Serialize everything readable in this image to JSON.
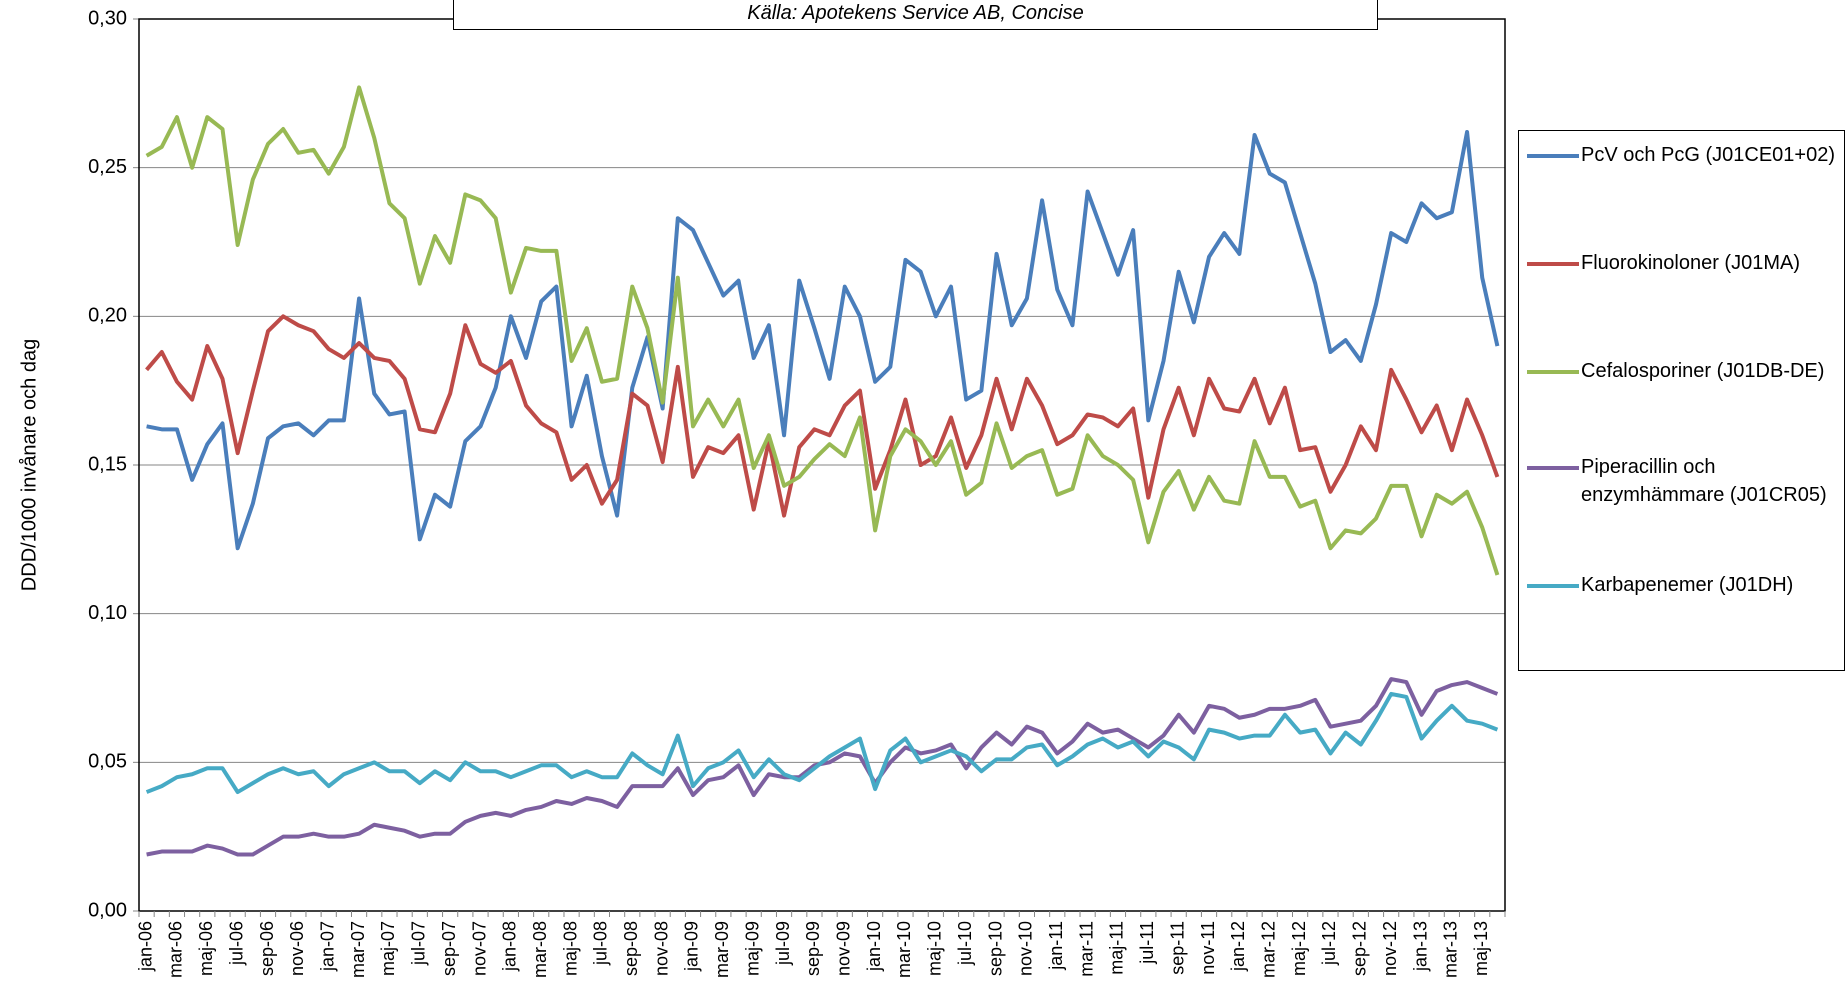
{
  "chart_data": {
    "type": "line",
    "annotation": "Källa: Apotekens Service AB, Concise",
    "ylabel": "DDD/1000 invånare och dag",
    "categories": [
      "jan-06",
      null,
      "mar-06",
      null,
      "maj-06",
      null,
      "jul-06",
      null,
      "sep-06",
      null,
      "nov-06",
      null,
      "jan-07",
      null,
      "mar-07",
      null,
      "maj-07",
      null,
      "jul-07",
      null,
      "sep-07",
      null,
      "nov-07",
      null,
      "jan-08",
      null,
      "mar-08",
      null,
      "maj-08",
      null,
      "jul-08",
      null,
      "sep-08",
      null,
      "nov-08",
      null,
      "jan-09",
      null,
      "mar-09",
      null,
      "maj-09",
      null,
      "jul-09",
      null,
      "sep-09",
      null,
      "nov-09",
      null,
      "jan-10",
      null,
      "mar-10",
      null,
      "maj-10",
      null,
      "jul-10",
      null,
      "sep-10",
      null,
      "nov-10",
      null,
      "jan-11",
      null,
      "mar-11",
      null,
      "maj-11",
      null,
      "jul-11",
      null,
      "sep-11",
      null,
      "nov-11",
      null,
      "jan-12",
      null,
      "mar-12",
      null,
      "maj-12",
      null,
      "jul-12",
      null,
      "sep-12",
      null,
      "nov-12",
      null,
      "jan-13",
      null,
      "mar-13",
      null,
      "maj-13",
      null
    ],
    "series": [
      {
        "name": "PcV och PcG (J01CE01+02)",
        "color": "#4a7ebb",
        "values": [
          0.163,
          0.162,
          0.162,
          0.145,
          0.157,
          0.164,
          0.122,
          0.137,
          0.159,
          0.163,
          0.164,
          0.16,
          0.165,
          0.165,
          0.206,
          0.174,
          0.167,
          0.168,
          0.125,
          0.14,
          0.136,
          0.158,
          0.163,
          0.176,
          0.2,
          0.186,
          0.205,
          0.21,
          0.163,
          0.18,
          0.153,
          0.133,
          0.176,
          0.193,
          0.169,
          0.233,
          0.229,
          0.218,
          0.207,
          0.212,
          0.186,
          0.197,
          0.16,
          0.212,
          0.196,
          0.179,
          0.21,
          0.2,
          0.178,
          0.183,
          0.219,
          0.215,
          0.2,
          0.21,
          0.172,
          0.175,
          0.221,
          0.197,
          0.206,
          0.239,
          0.209,
          0.197,
          0.242,
          0.228,
          0.214,
          0.229,
          0.165,
          0.185,
          0.215,
          0.198,
          0.22,
          0.228,
          0.221,
          0.261,
          0.248,
          0.245,
          0.228,
          0.211,
          0.188,
          0.192,
          0.185,
          0.204,
          0.228,
          0.225,
          0.238,
          0.233,
          0.235,
          0.262,
          0.213,
          0.19
        ]
      },
      {
        "name": "Fluorokinoloner (J01MA)",
        "color": "#be4b48",
        "values": [
          0.182,
          0.188,
          0.178,
          0.172,
          0.19,
          0.179,
          0.154,
          0.175,
          0.195,
          0.2,
          0.197,
          0.195,
          0.189,
          0.186,
          0.191,
          0.186,
          0.185,
          0.179,
          0.162,
          0.161,
          0.174,
          0.197,
          0.184,
          0.181,
          0.185,
          0.17,
          0.164,
          0.161,
          0.145,
          0.15,
          0.137,
          0.145,
          0.174,
          0.17,
          0.151,
          0.183,
          0.146,
          0.156,
          0.154,
          0.16,
          0.135,
          0.158,
          0.133,
          0.156,
          0.162,
          0.16,
          0.17,
          0.175,
          0.142,
          0.155,
          0.172,
          0.15,
          0.153,
          0.166,
          0.149,
          0.16,
          0.179,
          0.162,
          0.179,
          0.17,
          0.157,
          0.16,
          0.167,
          0.166,
          0.163,
          0.169,
          0.139,
          0.162,
          0.176,
          0.16,
          0.179,
          0.169,
          0.168,
          0.179,
          0.164,
          0.176,
          0.155,
          0.156,
          0.141,
          0.15,
          0.163,
          0.155,
          0.182,
          0.172,
          0.161,
          0.17,
          0.155,
          0.172,
          0.16,
          0.146
        ]
      },
      {
        "name": "Cefalosporiner (J01DB-DE)",
        "color": "#98b954",
        "values": [
          0.254,
          0.257,
          0.267,
          0.25,
          0.267,
          0.263,
          0.224,
          0.246,
          0.258,
          0.263,
          0.255,
          0.256,
          0.248,
          0.257,
          0.277,
          0.26,
          0.238,
          0.233,
          0.211,
          0.227,
          0.218,
          0.241,
          0.239,
          0.233,
          0.208,
          0.223,
          0.222,
          0.222,
          0.185,
          0.196,
          0.178,
          0.179,
          0.21,
          0.196,
          0.171,
          0.213,
          0.163,
          0.172,
          0.163,
          0.172,
          0.149,
          0.16,
          0.143,
          0.146,
          0.152,
          0.157,
          0.153,
          0.166,
          0.128,
          0.153,
          0.162,
          0.158,
          0.15,
          0.158,
          0.14,
          0.144,
          0.164,
          0.149,
          0.153,
          0.155,
          0.14,
          0.142,
          0.16,
          0.153,
          0.15,
          0.145,
          0.124,
          0.141,
          0.148,
          0.135,
          0.146,
          0.138,
          0.137,
          0.158,
          0.146,
          0.146,
          0.136,
          0.138,
          0.122,
          0.128,
          0.127,
          0.132,
          0.143,
          0.143,
          0.126,
          0.14,
          0.137,
          0.141,
          0.129,
          0.113
        ]
      },
      {
        "name": "Piperacillin och enzymhämmare (J01CR05)",
        "color": "#7d60a0",
        "values": [
          0.019,
          0.02,
          0.02,
          0.02,
          0.022,
          0.021,
          0.019,
          0.019,
          0.022,
          0.025,
          0.025,
          0.026,
          0.025,
          0.025,
          0.026,
          0.029,
          0.028,
          0.027,
          0.025,
          0.026,
          0.026,
          0.03,
          0.032,
          0.033,
          0.032,
          0.034,
          0.035,
          0.037,
          0.036,
          0.038,
          0.037,
          0.035,
          0.042,
          0.042,
          0.042,
          0.048,
          0.039,
          0.044,
          0.045,
          0.049,
          0.039,
          0.046,
          0.045,
          0.045,
          0.049,
          0.05,
          0.053,
          0.052,
          0.043,
          0.05,
          0.055,
          0.053,
          0.054,
          0.056,
          0.048,
          0.055,
          0.06,
          0.056,
          0.062,
          0.06,
          0.053,
          0.057,
          0.063,
          0.06,
          0.061,
          0.058,
          0.055,
          0.059,
          0.066,
          0.06,
          0.069,
          0.068,
          0.065,
          0.066,
          0.068,
          0.068,
          0.069,
          0.071,
          0.062,
          0.063,
          0.064,
          0.069,
          0.078,
          0.077,
          0.066,
          0.074,
          0.076,
          0.077,
          0.075,
          0.073
        ]
      },
      {
        "name": "Karbapenemer (J01DH)",
        "color": "#46aac5",
        "values": [
          0.04,
          0.042,
          0.045,
          0.046,
          0.048,
          0.048,
          0.04,
          0.043,
          0.046,
          0.048,
          0.046,
          0.047,
          0.042,
          0.046,
          0.048,
          0.05,
          0.047,
          0.047,
          0.043,
          0.047,
          0.044,
          0.05,
          0.047,
          0.047,
          0.045,
          0.047,
          0.049,
          0.049,
          0.045,
          0.047,
          0.045,
          0.045,
          0.053,
          0.049,
          0.046,
          0.059,
          0.042,
          0.048,
          0.05,
          0.054,
          0.045,
          0.051,
          0.046,
          0.044,
          0.048,
          0.052,
          0.055,
          0.058,
          0.041,
          0.054,
          0.058,
          0.05,
          0.052,
          0.054,
          0.052,
          0.047,
          0.051,
          0.051,
          0.055,
          0.056,
          0.049,
          0.052,
          0.056,
          0.058,
          0.055,
          0.057,
          0.052,
          0.057,
          0.055,
          0.051,
          0.061,
          0.06,
          0.058,
          0.059,
          0.059,
          0.066,
          0.06,
          0.061,
          0.053,
          0.06,
          0.056,
          0.064,
          0.073,
          0.072,
          0.058,
          0.064,
          0.069,
          0.064,
          0.063,
          0.061
        ]
      }
    ],
    "ylim": [
      0,
      0.3
    ],
    "yticks": [
      {
        "value": 0,
        "label": "0,00"
      },
      {
        "value": 0.05,
        "label": "0,05"
      },
      {
        "value": 0.1,
        "label": "0,10"
      },
      {
        "value": 0.15,
        "label": "0,15"
      },
      {
        "value": 0.2,
        "label": "0,20"
      },
      {
        "value": 0.25,
        "label": "0,25"
      },
      {
        "value": 0.3,
        "label": "0,30"
      }
    ],
    "grid": true,
    "legend": "right"
  }
}
